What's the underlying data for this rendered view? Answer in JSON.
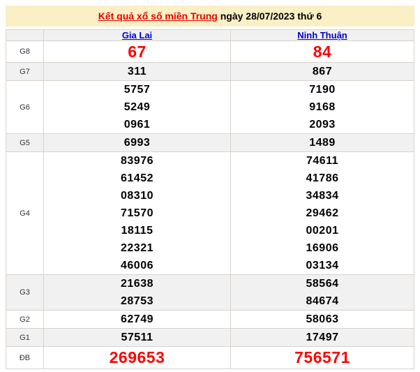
{
  "title": {
    "link": "Kết quả xổ số miền Trung",
    "suffix": " ngày 28/07/2023 thứ 6"
  },
  "columns": [
    "Gia Lai",
    "Ninh Thuận"
  ],
  "prizes": [
    {
      "label": "G8",
      "highlight": true,
      "values": [
        [
          "67"
        ],
        [
          "84"
        ]
      ]
    },
    {
      "label": "G7",
      "highlight": false,
      "values": [
        [
          "311"
        ],
        [
          "867"
        ]
      ]
    },
    {
      "label": "G6",
      "highlight": false,
      "values": [
        [
          "5757",
          "5249",
          "0961"
        ],
        [
          "7190",
          "9168",
          "2093"
        ]
      ]
    },
    {
      "label": "G5",
      "highlight": false,
      "values": [
        [
          "6993"
        ],
        [
          "1489"
        ]
      ]
    },
    {
      "label": "G4",
      "highlight": false,
      "values": [
        [
          "83976",
          "61452",
          "08310",
          "71570",
          "18115",
          "22321",
          "46006"
        ],
        [
          "74611",
          "41786",
          "34834",
          "29462",
          "00201",
          "16906",
          "03134"
        ]
      ]
    },
    {
      "label": "G3",
      "highlight": false,
      "values": [
        [
          "21638",
          "28753"
        ],
        [
          "58564",
          "84674"
        ]
      ]
    },
    {
      "label": "G2",
      "highlight": false,
      "values": [
        [
          "62749"
        ],
        [
          "58063"
        ]
      ]
    },
    {
      "label": "G1",
      "highlight": false,
      "values": [
        [
          "57511"
        ],
        [
          "17497"
        ]
      ]
    },
    {
      "label": "ĐB",
      "highlight": true,
      "values": [
        [
          "269653"
        ],
        [
          "756571"
        ]
      ]
    }
  ],
  "colors": {
    "title_band_bg": "#FBEFC5",
    "title_link_red": "#E60000",
    "station_link_blue": "#0000CC",
    "highlight_number_red": "#FF0000",
    "alt_row_bg": "#F1F1F1",
    "grid_border": "#D9D2CB"
  }
}
